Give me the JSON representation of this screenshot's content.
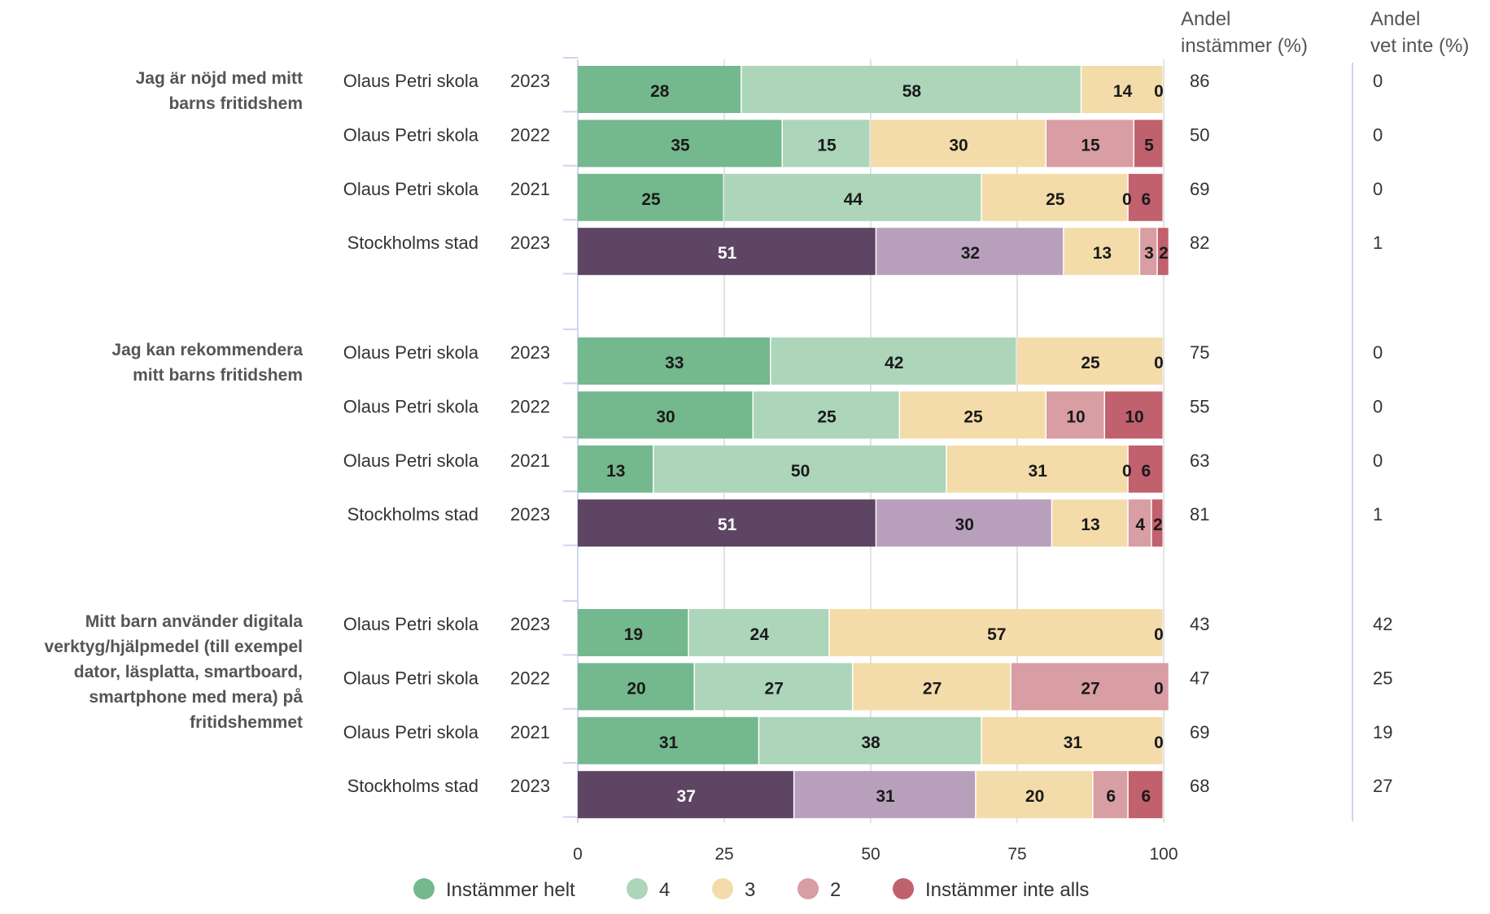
{
  "chart_data": {
    "type": "bar",
    "orientation": "horizontal-stacked",
    "xlim": [
      0,
      100
    ],
    "xticks": [
      "0",
      "25",
      "50",
      "75",
      "100"
    ],
    "grid": true,
    "legend_placement": "bottom",
    "columns": {
      "agree_header": [
        "Andel",
        "instämmer (%)"
      ],
      "dontknow_header": [
        "Andel",
        "vet inte (%)"
      ]
    },
    "series": [
      {
        "name": "Instämmer helt",
        "color": "#74b88e",
        "label_color": "#1a1a1a"
      },
      {
        "name": "4",
        "color": "#acd5ba",
        "label_color": "#1a1a1a"
      },
      {
        "name": "3",
        "color": "#f3dca9",
        "label_color": "#1a1a1a"
      },
      {
        "name": "2",
        "color": "#d99da4",
        "label_color": "#1a1a1a"
      },
      {
        "name": "Instämmer inte alls",
        "color": "#c1616d",
        "label_color": "#1a1a1a"
      }
    ],
    "reference_colors": [
      "#5e4563",
      "#b8a0bd",
      "#f3dca9",
      "#d99da4",
      "#c1616d"
    ],
    "reference_label_colors": [
      "#ffffff",
      "#1a1a1a",
      "#1a1a1a",
      "#1a1a1a",
      "#1a1a1a"
    ],
    "groups": [
      {
        "question": [
          "Jag är nöjd med mitt",
          "barns fritidshem"
        ],
        "rows": [
          {
            "unit": "Olaus Petri skola",
            "year": "2023",
            "values": [
              28,
              58,
              14,
              0,
              0
            ],
            "labels": [
              "28",
              "58",
              "14",
              "",
              "0"
            ],
            "agree": "86",
            "dontknow": "0",
            "reference": false
          },
          {
            "unit": "Olaus Petri skola",
            "year": "2022",
            "values": [
              35,
              15,
              30,
              15,
              5
            ],
            "labels": [
              "35",
              "15",
              "30",
              "15",
              "5"
            ],
            "agree": "50",
            "dontknow": "0",
            "reference": false
          },
          {
            "unit": "Olaus Petri skola",
            "year": "2021",
            "values": [
              25,
              44,
              25,
              0,
              6
            ],
            "labels": [
              "25",
              "44",
              "25",
              "0",
              "6"
            ],
            "agree": "69",
            "dontknow": "0",
            "reference": false
          },
          {
            "unit": "Stockholms stad",
            "year": "2023",
            "values": [
              51,
              32,
              13,
              3,
              2
            ],
            "labels": [
              "51",
              "32",
              "13",
              "3",
              "2"
            ],
            "agree": "82",
            "dontknow": "1",
            "reference": true
          }
        ]
      },
      {
        "question": [
          "Jag kan rekommendera",
          "mitt barns fritidshem"
        ],
        "rows": [
          {
            "unit": "Olaus Petri skola",
            "year": "2023",
            "values": [
              33,
              42,
              25,
              0,
              0
            ],
            "labels": [
              "33",
              "42",
              "25",
              "",
              "0"
            ],
            "agree": "75",
            "dontknow": "0",
            "reference": false
          },
          {
            "unit": "Olaus Petri skola",
            "year": "2022",
            "values": [
              30,
              25,
              25,
              10,
              10
            ],
            "labels": [
              "30",
              "25",
              "25",
              "10",
              "10"
            ],
            "agree": "55",
            "dontknow": "0",
            "reference": false
          },
          {
            "unit": "Olaus Petri skola",
            "year": "2021",
            "values": [
              13,
              50,
              31,
              0,
              6
            ],
            "labels": [
              "13",
              "50",
              "31",
              "0",
              "6"
            ],
            "agree": "63",
            "dontknow": "0",
            "reference": false
          },
          {
            "unit": "Stockholms stad",
            "year": "2023",
            "values": [
              51,
              30,
              13,
              4,
              2
            ],
            "labels": [
              "51",
              "30",
              "13",
              "4",
              "2"
            ],
            "agree": "81",
            "dontknow": "1",
            "reference": true
          }
        ]
      },
      {
        "question": [
          "Mitt barn använder digitala",
          "verktyg/hjälpmedel (till exempel",
          "dator, läsplatta, smartboard,",
          "smartphone med mera) på",
          "fritidshemmet"
        ],
        "rows": [
          {
            "unit": "Olaus Petri skola",
            "year": "2023",
            "values": [
              19,
              24,
              57,
              0,
              0
            ],
            "labels": [
              "19",
              "24",
              "57",
              "",
              "0"
            ],
            "agree": "43",
            "dontknow": "42",
            "reference": false
          },
          {
            "unit": "Olaus Petri skola",
            "year": "2022",
            "values": [
              20,
              27,
              27,
              27,
              0
            ],
            "labels": [
              "20",
              "27",
              "27",
              "27",
              "0"
            ],
            "agree": "47",
            "dontknow": "25",
            "reference": false
          },
          {
            "unit": "Olaus Petri skola",
            "year": "2021",
            "values": [
              31,
              38,
              31,
              0,
              0
            ],
            "labels": [
              "31",
              "38",
              "31",
              "",
              "0"
            ],
            "agree": "69",
            "dontknow": "19",
            "reference": false
          },
          {
            "unit": "Stockholms stad",
            "year": "2023",
            "values": [
              37,
              31,
              20,
              6,
              6
            ],
            "labels": [
              "37",
              "31",
              "20",
              "6",
              "6"
            ],
            "agree": "68",
            "dontknow": "27",
            "reference": true
          }
        ]
      }
    ]
  }
}
